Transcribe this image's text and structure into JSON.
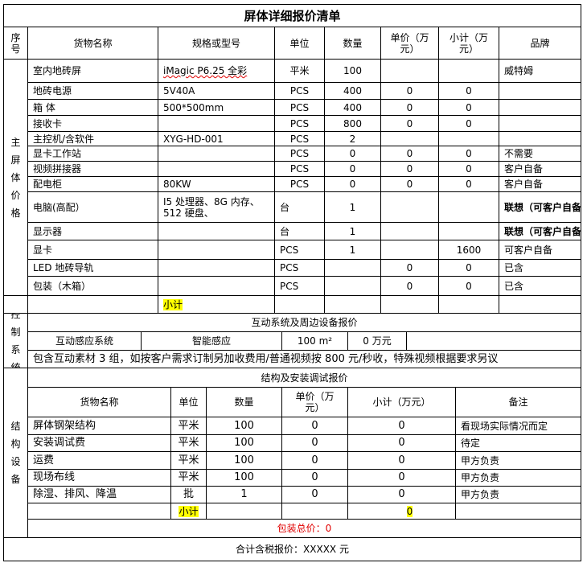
{
  "title": "屏体详细报价清单",
  "main_header": [
    "序号",
    "货物名称",
    "规格或型号",
    "单位",
    "数量",
    "单价（万元）",
    "小计（万元）",
    "品牌"
  ],
  "main_section_label": "主屏体价格",
  "main_rows": [
    {
      "name": "室内地砖屏",
      "spec": "iMagic P6.25 全彩",
      "unit": "平米",
      "qty": "100",
      "price": "",
      "subtotal": "",
      "brand": "威特姆"
    },
    {
      "name": "地砖电源",
      "spec": "5V40A",
      "unit": "PCS",
      "qty": "400",
      "price": "0",
      "subtotal": "0",
      "brand": ""
    },
    {
      "name": "箱 体",
      "spec": "500*500mm",
      "unit": "PCS",
      "qty": "400",
      "price": "0",
      "subtotal": "0",
      "brand": ""
    },
    {
      "name": "接收卡",
      "spec": "",
      "unit": "PCS",
      "qty": "800",
      "price": "0",
      "subtotal": "0",
      "brand": ""
    },
    {
      "name": "主控机/含软件",
      "spec": "XYG-HD-001",
      "unit": "PCS",
      "qty": "2",
      "price": "",
      "subtotal": "",
      "brand": ""
    },
    {
      "name": "显卡工作站",
      "spec": "",
      "unit": "PCS",
      "qty": "0",
      "price": "0",
      "subtotal": "0",
      "brand": "不需要"
    },
    {
      "name": "视频拼接器",
      "spec": "",
      "unit": "PCS",
      "qty": "0",
      "price": "0",
      "subtotal": "0",
      "brand": "客户自备"
    },
    {
      "name": "配电柜",
      "spec": "80KW",
      "unit": "PCS",
      "qty": "0",
      "price": "0",
      "subtotal": "0",
      "brand": "客户自备"
    },
    {
      "name": "电脑(高配）",
      "spec": "I5 处理器、8G 内存、512 硬盘、",
      "unit": "台",
      "qty": "1",
      "price": "",
      "subtotal": "",
      "brand": "联想（可客户自备"
    },
    {
      "name": "显示器",
      "spec": "",
      "unit": "台",
      "qty": "1",
      "price": "",
      "subtotal": "",
      "brand": "联想（可客户自备"
    },
    {
      "name": "显卡",
      "spec": "",
      "unit": "PCS",
      "qty": "1",
      "price": "",
      "subtotal": "1600",
      "brand": "可客户自备"
    },
    {
      "name": "LED 地砖导轨",
      "spec": "",
      "unit": "PCS",
      "qty": "",
      "price": "0",
      "subtotal": "0",
      "brand": "已含"
    },
    {
      "name": "包装（木箱）",
      "spec": "",
      "unit": "PCS",
      "qty": "",
      "price": "0",
      "subtotal": "0",
      "brand": "已含"
    }
  ],
  "subtotal_label": "小计",
  "control": {
    "label": "控制系统",
    "title": "互动系统及周边设备报价",
    "items": [
      "互动感应系统",
      "智能感应",
      "100 m²",
      "0 万元",
      ""
    ],
    "note": "包含互动素材 3 组，如按客户需求订制另加收费用/普通视频按 800 元/秒收，特殊视频根据要求另议"
  },
  "structure": {
    "label": "结构设备",
    "title": "结构及安装调试报价",
    "headers": [
      "货物名称",
      "单位",
      "数量",
      "单价（万元）",
      "小计（万元）",
      "备注"
    ],
    "rows": [
      {
        "name": "屏体钢架结构",
        "unit": "平米",
        "qty": "100",
        "price": "0",
        "subtotal": "0",
        "note": "看现场实际情况而定"
      },
      {
        "name": "安装调试费",
        "unit": "平米",
        "qty": "100",
        "price": "0",
        "subtotal": "0",
        "note": "待定"
      },
      {
        "name": "运费",
        "unit": "平米",
        "qty": "100",
        "price": "0",
        "subtotal": "0",
        "note": "甲方负责"
      },
      {
        "name": "现场布线",
        "unit": "平米",
        "qty": "100",
        "price": "0",
        "subtotal": "0",
        "note": "甲方负责"
      },
      {
        "name": "除湿、排风、降温",
        "unit": "批",
        "qty": "1",
        "price": "0",
        "subtotal": "0",
        "note": "甲方负责"
      }
    ],
    "subtotal_label": "小计",
    "subtotal_value": "0",
    "package_total": "包装总价：0"
  },
  "grand_total": "合计含税报价：XXXXX 元",
  "colors": {
    "highlight": "#ffff00",
    "red_text": "#e00000",
    "border": "#000000"
  }
}
